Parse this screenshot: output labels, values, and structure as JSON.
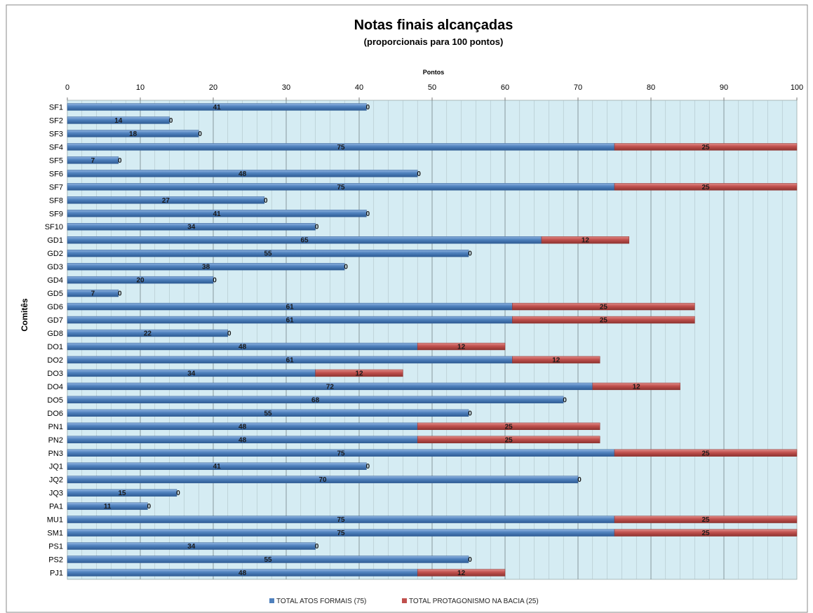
{
  "chart_data": {
    "type": "bar",
    "orientation": "horizontal",
    "stacked": true,
    "title": "Notas finais alcançadas",
    "subtitle": "(proporcionais para 100 pontos)",
    "xlabel": "Pontos",
    "ylabel": "Comitês",
    "xlim": [
      0,
      100
    ],
    "x_ticks": [
      "0",
      "10",
      "20",
      "30",
      "40",
      "50",
      "60",
      "70",
      "80",
      "90",
      "100"
    ],
    "grid": true,
    "legend_position": "bottom",
    "categories": [
      "SF1",
      "SF2",
      "SF3",
      "SF4",
      "SF5",
      "SF6",
      "SF7",
      "SF8",
      "SF9",
      "SF10",
      "GD1",
      "GD2",
      "GD3",
      "GD4",
      "GD5",
      "GD6",
      "GD7",
      "GD8",
      "DO1",
      "DO2",
      "DO3",
      "DO4",
      "DO5",
      "DO6",
      "PN1",
      "PN2",
      "PN3",
      "JQ1",
      "JQ2",
      "JQ3",
      "PA1",
      "MU1",
      "SM1",
      "PS1",
      "PS2",
      "PJ1"
    ],
    "series": [
      {
        "name": "TOTAL ATOS FORMAIS (75)",
        "color": "#4F81BD",
        "values": [
          41,
          14,
          18,
          75,
          7,
          48,
          75,
          27,
          41,
          34,
          65,
          55,
          38,
          20,
          7,
          61,
          61,
          22,
          48,
          61,
          34,
          72,
          68,
          55,
          48,
          48,
          75,
          41,
          70,
          15,
          11,
          75,
          75,
          34,
          55,
          48
        ]
      },
      {
        "name": "TOTAL PROTAGONISMO NA BACIA (25)",
        "color": "#C0504D",
        "values": [
          0,
          0,
          0,
          25,
          0,
          0,
          25,
          0,
          0,
          0,
          12,
          0,
          0,
          0,
          0,
          25,
          25,
          0,
          12,
          12,
          12,
          12,
          0,
          0,
          25,
          25,
          25,
          0,
          0,
          0,
          0,
          25,
          25,
          0,
          0,
          12
        ]
      }
    ]
  }
}
